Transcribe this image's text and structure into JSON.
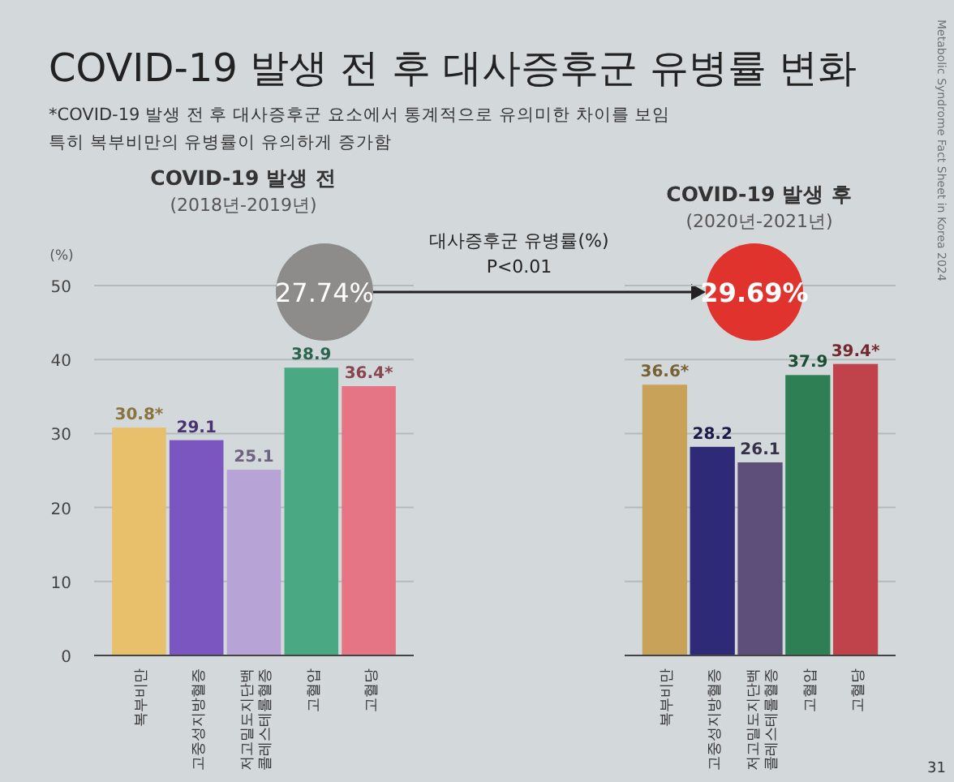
{
  "chart_data": [
    {
      "type": "other",
      "title": "COVID-19 발생 전 후 대사증후군 유병률 변화",
      "annotations": [
        "*COVID-19 발생 전 후 대사증후군 요소에서 통계적으로 유의미한 차이를 보임",
        "특히 복부비만의 유병률이 유의하게 증가함",
        "대사증후군 유병률(%)",
        "P<0.01",
        "Metabolic Syndrome Fact Sheet in Korea 2024",
        "31"
      ]
    },
    {
      "type": "bar",
      "title": "COVID-19 발생 전",
      "subtitle": "(2018년-2019년)",
      "ylabel": "(%)",
      "categories": [
        "복부비만",
        "고중성지방혈증",
        "저고밀도지단백 콜레스테롤혈증",
        "고혈압",
        "고혈당"
      ],
      "values": [
        30.8,
        29.1,
        25.1,
        38.9,
        36.4
      ],
      "value_labels": [
        "30.8*",
        "29.1",
        "25.1",
        "38.9",
        "36.4*"
      ],
      "colors": [
        "#e8bf6a",
        "#7b55c0",
        "#b7a3d6",
        "#4aa882",
        "#e57585"
      ],
      "ylim": [
        0,
        50
      ],
      "yticks": [
        0,
        10,
        20,
        30,
        40,
        50
      ],
      "grid": "y",
      "annotations": [
        "27.74%"
      ]
    },
    {
      "type": "bar",
      "title": "COVID-19 발생 후",
      "subtitle": "(2020년-2021년)",
      "categories": [
        "복부비만",
        "고중성지방혈증",
        "저고밀도지단백 콜레스테롤혈증",
        "고혈압",
        "고혈당"
      ],
      "values": [
        36.6,
        28.2,
        26.1,
        37.9,
        39.4
      ],
      "value_labels": [
        "36.6*",
        "28.2",
        "26.1",
        "37.9",
        "39.4*"
      ],
      "colors": [
        "#c9a25a",
        "#2e2a78",
        "#5d4f7a",
        "#2f7f55",
        "#c0424a"
      ],
      "ylim": [
        0,
        50
      ],
      "yticks": [
        0,
        10,
        20,
        30,
        40,
        50
      ],
      "grid": "y",
      "tick_labels": "x",
      "annotations": [
        "29.69%"
      ]
    }
  ]
}
